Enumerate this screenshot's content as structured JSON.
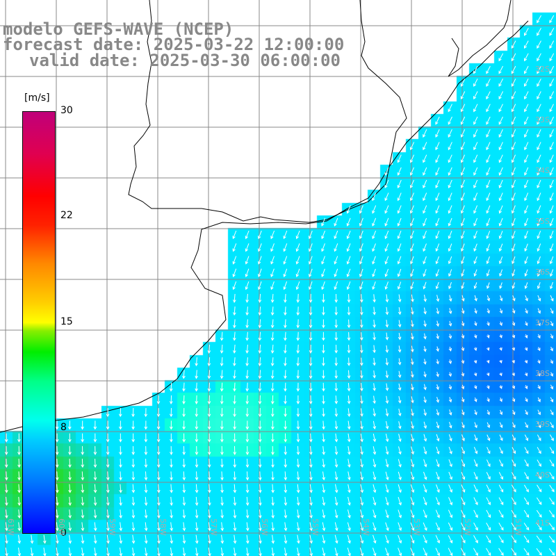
{
  "title": {
    "line1": "modelo GEFS-WAVE (NCEP)",
    "line2": "forecast date: 2025-03-22 12:00:00",
    "line3": "valid date: 2025-03-30 06:00:00"
  },
  "colorbar": {
    "unit": "[m/s]",
    "ticks": [
      "30",
      "22",
      "15",
      "8",
      "0"
    ],
    "colors": [
      "#0000ff",
      "#00ccff",
      "#00ffee",
      "#00ee00",
      "#ffff00",
      "#ff8800",
      "#ff0000",
      "#c0007a"
    ]
  },
  "latitude_labels": [
    "32S",
    "33S",
    "34S",
    "35S",
    "36S",
    "37S",
    "38S",
    "39S",
    "40S",
    "41S"
  ],
  "longitude_labels": [
    "61W",
    "60W",
    "59W",
    "58W",
    "57W",
    "56W",
    "55W",
    "54W",
    "53W",
    "52W",
    "51W"
  ],
  "map": {
    "field": "wind speed",
    "land_color": "#ffffff",
    "grid_color": "#888888",
    "coast_color": "#000000",
    "arrow_color": "#ffffff"
  }
}
